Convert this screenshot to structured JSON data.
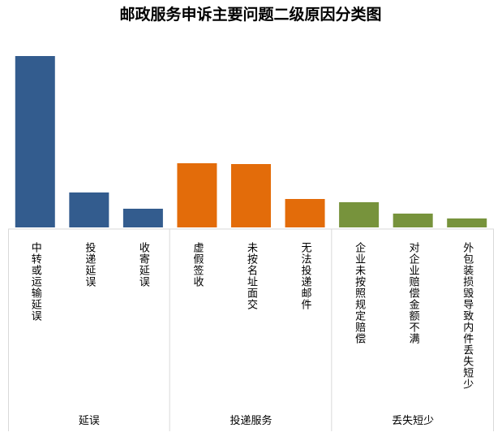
{
  "chart_data": {
    "type": "bar",
    "title": "邮政服务申诉主要问题二级原因分类图",
    "xlabel": "",
    "ylabel": "",
    "ylim": [
      0,
      211
    ],
    "grid": false,
    "legend": "none",
    "value_note": "relative bar heights (no axis shown)",
    "categories": [
      "中转或运输延误",
      "投递延误",
      "收寄延误",
      "虚假签收",
      "未按名址面交",
      "无法投递邮件",
      "企业未按照规定赔偿",
      "对企业赔偿金额不满",
      "外包装损毁导致内件丢失短少"
    ],
    "values": [
      211,
      43,
      23,
      79,
      78,
      35,
      31,
      17,
      11
    ],
    "groups": [
      {
        "name": "延误",
        "count": 3,
        "color": "#335c8e"
      },
      {
        "name": "投递服务",
        "count": 3,
        "color": "#e36c0a"
      },
      {
        "name": "丢失短少",
        "count": 3,
        "color": "#77933c"
      }
    ]
  }
}
